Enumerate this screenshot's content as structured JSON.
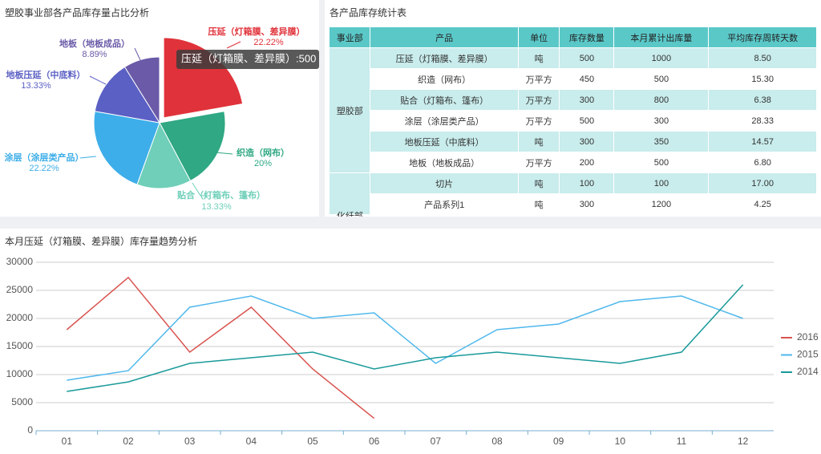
{
  "chart_data": [
    {
      "type": "pie",
      "title": "塑胶事业部各产品库存量占比分析",
      "categories": [
        "压延（灯箱膜、差异膜）",
        "织造（网布）",
        "贴合（灯箱布、篷布）",
        "涂层（涂层类产品）",
        "地板压延（中底料）",
        "地板（地板成品）"
      ],
      "values": [
        22.22,
        20,
        13.33,
        22.22,
        13.33,
        8.89
      ],
      "value_labels": [
        "22.22%",
        "20%",
        "13.33%",
        "22.22%",
        "13.33%",
        "8.89%"
      ],
      "colors": [
        "#e0323a",
        "#2fa883",
        "#6fcfb9",
        "#3daee9",
        "#5b60c4",
        "#6a5aa8"
      ],
      "tooltip": "压延（灯箱膜、差异膜）:500"
    },
    {
      "type": "line",
      "title": "本月压延（灯箱膜、差异膜）库存量趋势分析",
      "categories": [
        "01",
        "02",
        "03",
        "04",
        "05",
        "06",
        "07",
        "08",
        "09",
        "10",
        "11",
        "12"
      ],
      "series": [
        {
          "name": "2016",
          "color": "#d9534f",
          "values": [
            18000,
            27300,
            14000,
            22000,
            11000,
            2200,
            null,
            null,
            null,
            null,
            null,
            null
          ]
        },
        {
          "name": "2015",
          "color": "#4fb8ec",
          "values": [
            9000,
            10700,
            22000,
            24000,
            20000,
            21000,
            12000,
            18000,
            19000,
            23000,
            24000,
            20000
          ]
        },
        {
          "name": "2014",
          "color": "#1a9a9a",
          "values": [
            7000,
            8700,
            12000,
            13000,
            14000,
            11000,
            13000,
            14000,
            13000,
            12000,
            14000,
            26000
          ]
        }
      ],
      "ylim": [
        0,
        30000
      ],
      "yticks": [
        0,
        5000,
        10000,
        15000,
        20000,
        25000,
        30000
      ],
      "grid": true,
      "legend": "right"
    }
  ],
  "table": {
    "title": "各产品库存统计表",
    "header": [
      "事业部",
      "产品",
      "单位",
      "库存数量",
      "本月累计出库量",
      "平均库存周转天数"
    ],
    "groups": [
      {
        "name": "塑胶部",
        "rows": [
          [
            "压延（灯箱膜、差异膜）",
            "吨",
            "500",
            "1000",
            "8.50"
          ],
          [
            "织造（网布）",
            "万平方",
            "450",
            "500",
            "15.30"
          ],
          [
            "贴合（灯箱布、篷布）",
            "万平方",
            "300",
            "800",
            "6.38"
          ],
          [
            "涂层（涂层类产品）",
            "万平方",
            "500",
            "300",
            "28.33"
          ],
          [
            "地板压延（中底料）",
            "吨",
            "300",
            "350",
            "14.57"
          ],
          [
            "地板（地板成品）",
            "万平方",
            "200",
            "500",
            "6.80"
          ]
        ]
      },
      {
        "name": "化纤部",
        "rows": [
          [
            "切片",
            "吨",
            "100",
            "100",
            "17.00"
          ],
          [
            "产品系列1",
            "吨",
            "300",
            "1200",
            "4.25"
          ]
        ]
      }
    ]
  }
}
